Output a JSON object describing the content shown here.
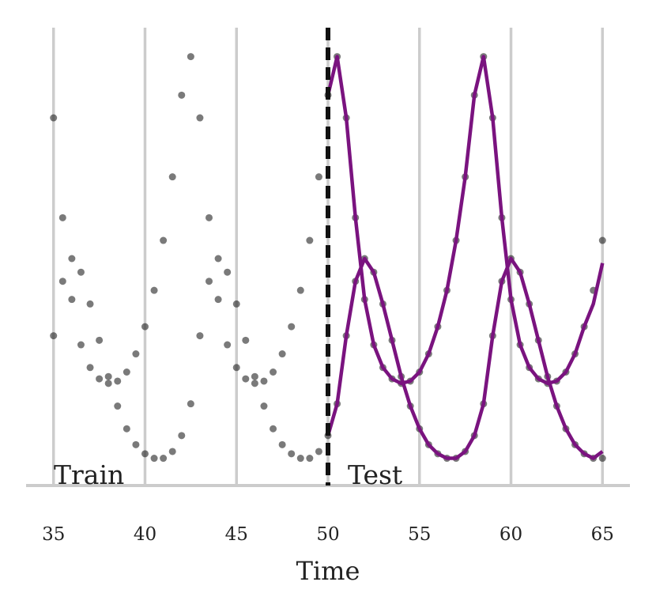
{
  "chart_data": {
    "type": "scatter",
    "xlabel": "Time",
    "annotations": [
      "Train",
      "Test"
    ],
    "split": 50,
    "xlim": [
      33.5,
      66.5
    ],
    "xticks": [
      35,
      40,
      45,
      50,
      55,
      60,
      65
    ],
    "ylim": [
      0,
      10
    ],
    "grid": true,
    "x": [
      35,
      35.5,
      36,
      36.5,
      37,
      37.5,
      38,
      38.5,
      39,
      39.5,
      40,
      40.5,
      41,
      41.5,
      42,
      42.5,
      43,
      43.5,
      44,
      44.5,
      45,
      45.5,
      46,
      46.5,
      47,
      47.5,
      48,
      48.5,
      49,
      49.5,
      50,
      50.5,
      51,
      51.5,
      52,
      52.5,
      53,
      53.5,
      54,
      54.5,
      55,
      55.5,
      56,
      56.5,
      57,
      57.5,
      58,
      58.5,
      59,
      59.5,
      60,
      60.5,
      61,
      61.5,
      62,
      62.5,
      63,
      63.5,
      64,
      64.5,
      65
    ],
    "series": [
      {
        "style": "points",
        "color": "#222222",
        "values": [
          8.1,
          5.9,
          4.1,
          3.1,
          2.6,
          2.35,
          2.25,
          2.3,
          2.5,
          2.9,
          3.5,
          4.3,
          5.4,
          6.8,
          8.6,
          9.45,
          8.1,
          5.9,
          4.1,
          3.1,
          2.6,
          2.35,
          2.25,
          2.3,
          2.5,
          2.9,
          3.5,
          4.3,
          5.4,
          6.8,
          8.6,
          9.45,
          8.1,
          5.9,
          4.1,
          3.1,
          2.6,
          2.35,
          2.25,
          2.3,
          2.5,
          2.9,
          3.5,
          4.3,
          5.4,
          6.8,
          8.6,
          9.45,
          8.1,
          5.9,
          4.1,
          3.1,
          2.6,
          2.35,
          2.25,
          2.3,
          2.5,
          2.9,
          3.5,
          4.3,
          5.4
        ]
      },
      {
        "style": "points",
        "color": "#222222",
        "values": [
          3.3,
          4.5,
          5.0,
          4.7,
          4.0,
          3.2,
          2.4,
          1.75,
          1.25,
          0.9,
          0.7,
          0.6,
          0.6,
          0.75,
          1.1,
          1.8,
          3.3,
          4.5,
          5.0,
          4.7,
          4.0,
          3.2,
          2.4,
          1.75,
          1.25,
          0.9,
          0.7,
          0.6,
          0.6,
          0.75,
          1.1,
          1.8,
          3.3,
          4.5,
          5.0,
          4.7,
          4.0,
          3.2,
          2.4,
          1.75,
          1.25,
          0.9,
          0.7,
          0.6,
          0.6,
          0.75,
          1.1,
          1.8,
          3.3,
          4.5,
          5.0,
          4.7,
          4.0,
          3.2,
          2.4,
          1.75,
          1.25,
          0.9,
          0.7,
          0.6,
          0.6
        ]
      },
      {
        "style": "line",
        "color": "#7a137f",
        "values": [
          null,
          null,
          null,
          null,
          null,
          null,
          null,
          null,
          null,
          null,
          null,
          null,
          null,
          null,
          null,
          null,
          null,
          null,
          null,
          null,
          null,
          null,
          null,
          null,
          null,
          null,
          null,
          null,
          null,
          null,
          8.6,
          9.45,
          8.1,
          5.9,
          4.1,
          3.1,
          2.6,
          2.35,
          2.25,
          2.3,
          2.5,
          2.9,
          3.5,
          4.3,
          5.4,
          6.8,
          8.6,
          9.45,
          8.1,
          5.9,
          4.1,
          3.1,
          2.6,
          2.35,
          2.25,
          2.3,
          2.5,
          2.9,
          3.5,
          4.0,
          4.9
        ]
      },
      {
        "style": "line",
        "color": "#7a137f",
        "values": [
          null,
          null,
          null,
          null,
          null,
          null,
          null,
          null,
          null,
          null,
          null,
          null,
          null,
          null,
          null,
          null,
          null,
          null,
          null,
          null,
          null,
          null,
          null,
          null,
          null,
          null,
          null,
          null,
          null,
          null,
          1.1,
          1.8,
          3.3,
          4.5,
          5.0,
          4.7,
          4.0,
          3.2,
          2.4,
          1.75,
          1.25,
          0.9,
          0.7,
          0.6,
          0.6,
          0.75,
          1.1,
          1.8,
          3.3,
          4.5,
          5.0,
          4.7,
          4.0,
          3.2,
          2.4,
          1.75,
          1.25,
          0.9,
          0.7,
          0.6,
          0.75
        ]
      }
    ]
  }
}
